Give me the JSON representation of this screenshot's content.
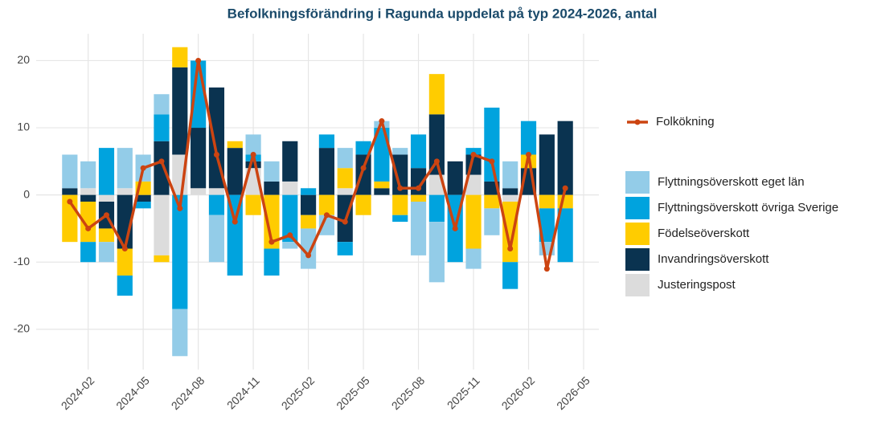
{
  "chart_data": {
    "type": "stacked_bar_line",
    "title": "Befolkningsförändring i Ragunda uppdelat på typ 2024-2026, antal",
    "x": [
      "2024-01",
      "2024-02",
      "2024-03",
      "2024-04",
      "2024-05",
      "2024-06",
      "2024-07",
      "2024-08",
      "2024-09",
      "2024-10",
      "2024-11",
      "2024-12",
      "2025-01",
      "2025-02",
      "2025-03",
      "2025-04",
      "2025-05",
      "2025-06",
      "2025-07",
      "2025-08",
      "2025-09",
      "2025-10",
      "2025-11",
      "2025-12",
      "2026-01",
      "2026-02",
      "2026-03",
      "2026-04"
    ],
    "xlim": [
      "2023-12",
      "2026-05"
    ],
    "xticks": [
      "2024-02",
      "2024-05",
      "2024-08",
      "2024-11",
      "2025-02",
      "2025-05",
      "2025-08",
      "2025-11",
      "2026-02",
      "2026-05"
    ],
    "ylim": [
      -26,
      24
    ],
    "yticks": [
      -20,
      -10,
      0,
      10,
      20
    ],
    "grid": true,
    "series": [
      {
        "name": "Flyttningsöverskott eget län",
        "color": "#93cce8",
        "values": [
          5,
          4,
          -3,
          6,
          4,
          3,
          -7,
          0,
          -7,
          0,
          3,
          3,
          -1,
          -6,
          -3,
          3,
          0,
          1,
          1,
          -8,
          -9,
          0,
          -3,
          -4,
          4,
          0,
          -2,
          0
        ]
      },
      {
        "name": "Flyttningsöverskott övriga Sverige",
        "color": "#00a3de",
        "values": [
          0,
          -3,
          7,
          -3,
          -1,
          4,
          -17,
          10,
          -3,
          -12,
          1,
          -4,
          -7,
          1,
          2,
          -2,
          2,
          8,
          -1,
          5,
          -4,
          -10,
          1,
          11,
          -4,
          5,
          -5,
          -8
        ]
      },
      {
        "name": "Födelseöverskott",
        "color": "#ffcc00",
        "values": [
          -7,
          -6,
          -2,
          -4,
          2,
          -1,
          3,
          0,
          0,
          1,
          -3,
          -8,
          0,
          -2,
          -3,
          3,
          -3,
          1,
          -3,
          -1,
          6,
          0,
          -8,
          -2,
          -9,
          2,
          -2,
          -2
        ]
      },
      {
        "name": "Invandringsöverskott",
        "color": "#0a3350",
        "values": [
          1,
          -1,
          -4,
          -8,
          -1,
          8,
          13,
          9,
          15,
          7,
          1,
          2,
          6,
          -3,
          7,
          -7,
          6,
          1,
          6,
          4,
          9,
          5,
          3,
          2,
          1,
          4,
          9,
          11
        ]
      },
      {
        "name": "Justeringspost",
        "color": "#dcdcdc",
        "values": [
          0,
          1,
          -1,
          1,
          0,
          -9,
          6,
          1,
          1,
          0,
          4,
          0,
          2,
          0,
          0,
          1,
          0,
          0,
          0,
          0,
          3,
          0,
          3,
          0,
          -1,
          0,
          0,
          0
        ]
      }
    ],
    "line": {
      "name": "Folkökning",
      "color": "#cc4411",
      "values": [
        -1,
        -5,
        -3,
        -8,
        4,
        5,
        -2,
        20,
        6,
        -4,
        6,
        -7,
        -6,
        -9,
        -3,
        -4,
        4,
        11,
        1,
        1,
        5,
        -5,
        6,
        5,
        -8,
        6,
        -11,
        1
      ]
    }
  }
}
